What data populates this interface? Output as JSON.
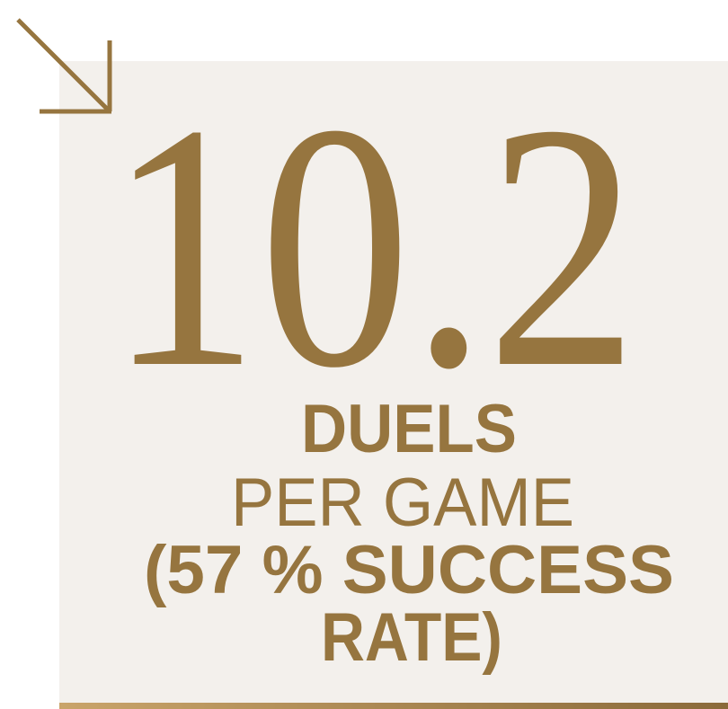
{
  "stat": {
    "value": "10.2",
    "lines": [
      "DUELS",
      "PER GAME",
      "(57 % SUCCESS",
      "RATE)"
    ]
  }
}
